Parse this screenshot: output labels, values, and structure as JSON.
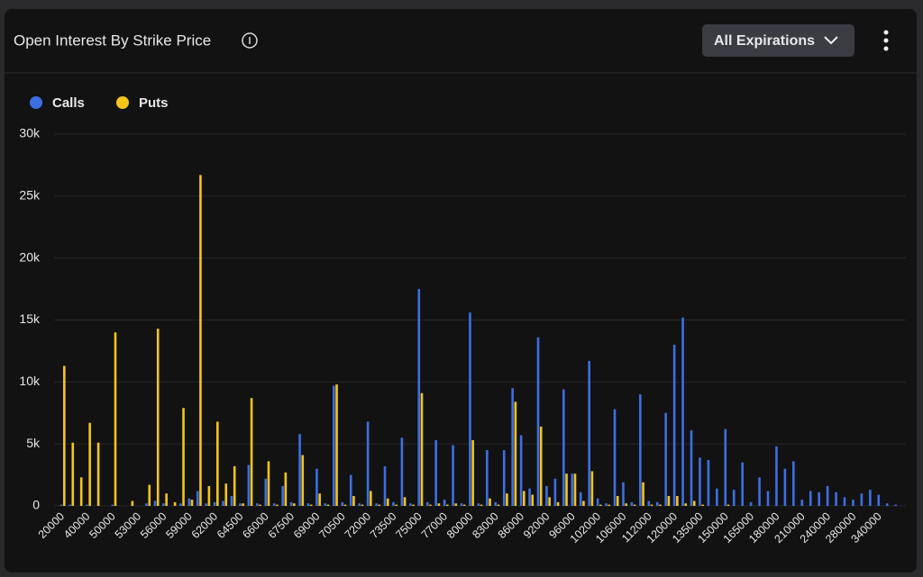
{
  "header": {
    "title": "Open Interest By Strike Price",
    "dropdown": "All Expirations"
  },
  "chart_data": {
    "type": "bar",
    "categories": [
      "20000",
      null,
      null,
      "40000",
      null,
      null,
      "50000",
      null,
      null,
      "53000",
      null,
      null,
      "56000",
      null,
      null,
      "59000",
      null,
      null,
      "62000",
      null,
      null,
      "64500",
      null,
      null,
      "66000",
      null,
      null,
      "67500",
      null,
      null,
      "69000",
      null,
      null,
      "70500",
      null,
      null,
      "72000",
      null,
      null,
      "73500",
      null,
      null,
      "75000",
      null,
      null,
      "77000",
      null,
      null,
      "80000",
      null,
      null,
      "83000",
      null,
      null,
      "86000",
      null,
      null,
      "92000",
      null,
      null,
      "96000",
      null,
      null,
      "102000",
      null,
      null,
      "106000",
      null,
      null,
      "112000",
      null,
      null,
      "120000",
      null,
      null,
      "135000",
      null,
      null,
      "150000",
      null,
      null,
      "165000",
      null,
      null,
      "180000",
      null,
      null,
      "210000",
      null,
      null,
      "240000",
      null,
      null,
      "280000",
      null,
      null,
      "340000",
      null,
      null
    ],
    "series": [
      {
        "name": "Calls",
        "color": "#3d6fe3",
        "values": [
          100,
          100,
          0,
          100,
          0,
          0,
          100,
          0,
          0,
          0,
          200,
          400,
          200,
          0,
          200,
          600,
          1200,
          200,
          300,
          400,
          800,
          200,
          3300,
          200,
          2200,
          200,
          1600,
          300,
          5800,
          200,
          3000,
          200,
          9700,
          300,
          2500,
          200,
          6800,
          200,
          3200,
          300,
          5500,
          200,
          17500,
          300,
          5300,
          500,
          4900,
          200,
          15600,
          200,
          4500,
          300,
          4500,
          9500,
          5700,
          1400,
          13600,
          1600,
          2200,
          9400,
          2600,
          1100,
          11700,
          600,
          200,
          7800,
          1900,
          300,
          9000,
          400,
          300,
          7500,
          13000,
          15200,
          6100,
          3900,
          3700,
          1400,
          6200,
          1300,
          3500,
          300,
          2300,
          1200,
          4800,
          3000,
          3600,
          500,
          1200,
          1100,
          1600,
          1100,
          700,
          500,
          1000,
          1300,
          900,
          200,
          100
        ]
      },
      {
        "name": "Puts",
        "color": "#f4c51a",
        "values": [
          11300,
          5100,
          2300,
          6700,
          5100,
          0,
          14000,
          0,
          400,
          0,
          1700,
          14300,
          1000,
          300,
          7900,
          500,
          26700,
          1600,
          6800,
          1800,
          3200,
          200,
          8700,
          100,
          3600,
          100,
          2700,
          200,
          4100,
          100,
          1000,
          100,
          9800,
          100,
          800,
          100,
          1200,
          100,
          600,
          100,
          700,
          100,
          9100,
          100,
          200,
          100,
          200,
          100,
          5300,
          100,
          600,
          100,
          1000,
          8400,
          1200,
          900,
          6400,
          700,
          300,
          2600,
          2600,
          400,
          2800,
          100,
          100,
          800,
          200,
          100,
          1900,
          100,
          100,
          800,
          800,
          200,
          400,
          100,
          0,
          0,
          100,
          0,
          0,
          0,
          0,
          0,
          0,
          0,
          0,
          0,
          0,
          0,
          0,
          0,
          0,
          0,
          0,
          0,
          0,
          0,
          0
        ]
      }
    ],
    "ylim": [
      0,
      30000
    ],
    "yticks": [
      0,
      {
        "value": 5000,
        "label": "5k"
      },
      {
        "value": 10000,
        "label": "10k"
      },
      {
        "value": 15000,
        "label": "15k"
      },
      {
        "value": 20000,
        "label": "20k"
      },
      {
        "value": 25000,
        "label": "25k"
      },
      {
        "value": 30000,
        "label": "30k"
      }
    ],
    "grid": true
  }
}
